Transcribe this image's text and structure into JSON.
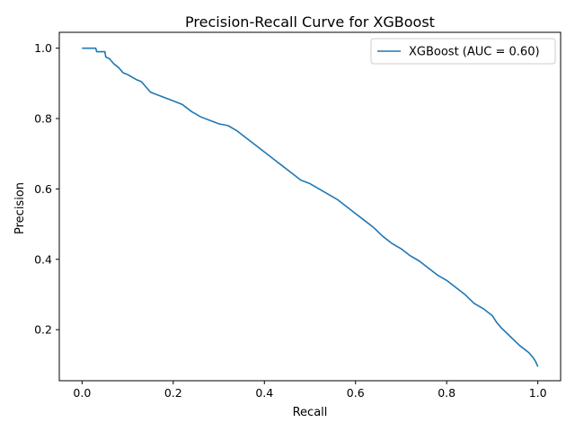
{
  "chart_data": {
    "type": "line",
    "title": "Precision-Recall Curve for XGBoost",
    "xlabel": "Recall",
    "ylabel": "Precision",
    "xlim": [
      -0.05,
      1.05
    ],
    "ylim": [
      0.055,
      1.045
    ],
    "xticks": [
      0.0,
      0.2,
      0.4,
      0.6,
      0.8,
      1.0
    ],
    "xtick_labels": [
      "0.0",
      "0.2",
      "0.4",
      "0.6",
      "0.8",
      "1.0"
    ],
    "yticks": [
      0.2,
      0.4,
      0.6,
      0.8,
      1.0
    ],
    "ytick_labels": [
      "0.2",
      "0.4",
      "0.6",
      "0.8",
      "1.0"
    ],
    "grid": false,
    "legend": {
      "placement": "upper right",
      "entries": [
        "XGBoost (AUC = 0.60)"
      ]
    },
    "series": [
      {
        "name": "XGBoost (AUC = 0.60)",
        "color": "#1f77b4",
        "x": [
          0.0,
          0.01,
          0.03,
          0.032,
          0.04,
          0.05,
          0.052,
          0.06,
          0.07,
          0.08,
          0.09,
          0.1,
          0.12,
          0.13,
          0.14,
          0.15,
          0.16,
          0.18,
          0.2,
          0.22,
          0.24,
          0.26,
          0.28,
          0.3,
          0.32,
          0.34,
          0.36,
          0.38,
          0.4,
          0.42,
          0.44,
          0.46,
          0.48,
          0.5,
          0.52,
          0.54,
          0.56,
          0.58,
          0.6,
          0.62,
          0.64,
          0.66,
          0.68,
          0.7,
          0.72,
          0.74,
          0.76,
          0.78,
          0.8,
          0.82,
          0.84,
          0.86,
          0.88,
          0.9,
          0.91,
          0.92,
          0.94,
          0.96,
          0.98,
          0.99,
          0.995,
          1.0
        ],
        "y": [
          1.0,
          1.0,
          1.0,
          0.99,
          0.99,
          0.99,
          0.975,
          0.97,
          0.955,
          0.945,
          0.93,
          0.925,
          0.91,
          0.905,
          0.89,
          0.875,
          0.87,
          0.86,
          0.85,
          0.84,
          0.82,
          0.805,
          0.795,
          0.785,
          0.78,
          0.765,
          0.745,
          0.725,
          0.705,
          0.685,
          0.665,
          0.645,
          0.625,
          0.615,
          0.6,
          0.585,
          0.57,
          0.55,
          0.53,
          0.51,
          0.49,
          0.465,
          0.445,
          0.43,
          0.41,
          0.395,
          0.375,
          0.355,
          0.34,
          0.32,
          0.3,
          0.275,
          0.26,
          0.24,
          0.22,
          0.205,
          0.18,
          0.155,
          0.135,
          0.12,
          0.11,
          0.095
        ]
      }
    ]
  }
}
